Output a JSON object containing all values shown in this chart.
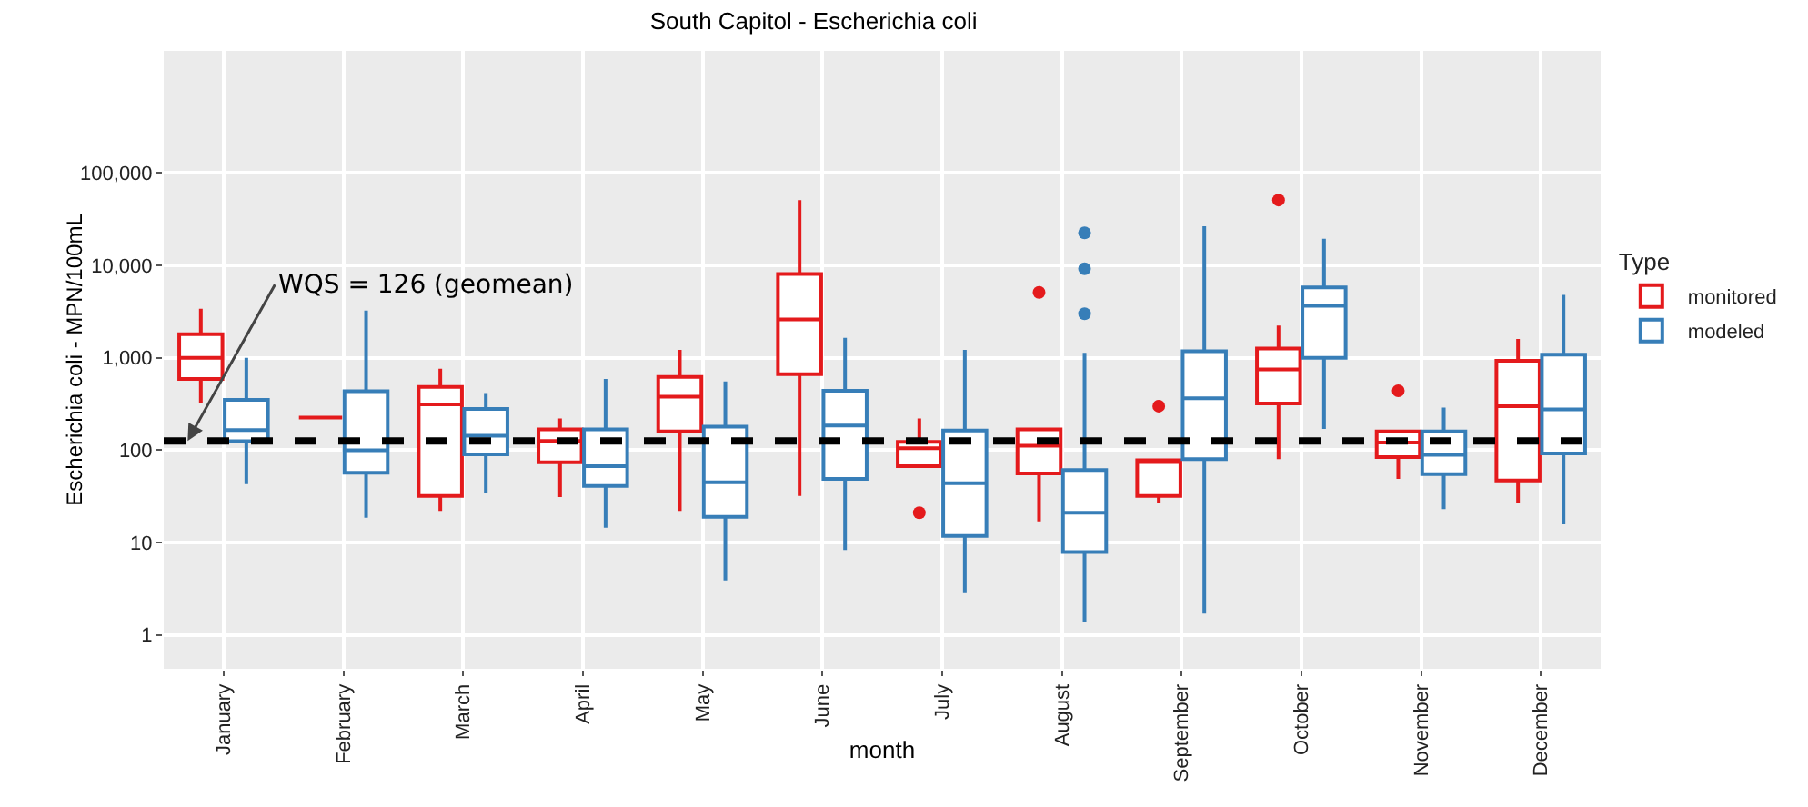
{
  "chart_data": {
    "type": "box",
    "title": "South Capitol - Escherichia coli",
    "xlabel": "month",
    "ylabel": "Escherichia coli - MPN/100mL",
    "legend_title": "Type",
    "legend": "right",
    "grid": true,
    "log": "y",
    "categories": [
      "January",
      "February",
      "March",
      "April",
      "May",
      "June",
      "July",
      "August",
      "September",
      "October",
      "November",
      "December"
    ],
    "ylim": [
      0.43,
      2100000
    ],
    "yticks": [
      1,
      10,
      100,
      {
        "value": 1000,
        "label": "1,000"
      },
      {
        "value": 10000,
        "label": "10,000"
      },
      {
        "value": 100000,
        "label": "100,000"
      }
    ],
    "ref_lines": [
      {
        "axis": "y",
        "value": 126,
        "label": "WQS = 126 (geomean)",
        "color": "#000000",
        "line_style": "dashed"
      }
    ],
    "series": [
      {
        "name": "monitored",
        "color": "#e41a1c",
        "boxes": [
          {
            "low": 320,
            "q1": 590,
            "median": 1000,
            "q3": 1800,
            "high": 3400
          },
          {
            "low": 225,
            "q1": 225,
            "median": 225,
            "q3": 225,
            "high": 225
          },
          {
            "low": 22,
            "q1": 32,
            "median": 313,
            "q3": 485,
            "high": 760
          },
          {
            "low": 31,
            "q1": 74,
            "median": 126,
            "q3": 168,
            "high": 220
          },
          {
            "low": 22,
            "q1": 160,
            "median": 380,
            "q3": 620,
            "high": 1220
          },
          {
            "low": 32,
            "q1": 665,
            "median": 2600,
            "q3": 8100,
            "high": 51000
          },
          {
            "low": 67,
            "q1": 67,
            "median": 105,
            "q3": 123,
            "high": 220,
            "outliers": [
              21
            ]
          },
          {
            "low": 17,
            "q1": 56,
            "median": 112,
            "q3": 168,
            "high": 168,
            "outliers": [
              5100
            ]
          },
          {
            "low": 27,
            "q1": 32,
            "median": 75,
            "q3": 78,
            "high": 78,
            "outliers": [
              300
            ]
          },
          {
            "low": 80,
            "q1": 320,
            "median": 750,
            "q3": 1260,
            "high": 2240,
            "outliers": [
              51000
            ]
          },
          {
            "low": 49,
            "q1": 84,
            "median": 121,
            "q3": 160,
            "high": 160,
            "outliers": [
              440
            ]
          },
          {
            "low": 27,
            "q1": 47,
            "median": 300,
            "q3": 930,
            "high": 1600
          }
        ]
      },
      {
        "name": "modeled",
        "color": "#377eb8",
        "boxes": [
          {
            "low": 43,
            "q1": 125,
            "median": 165,
            "q3": 350,
            "high": 1000
          },
          {
            "low": 18.6,
            "q1": 57,
            "median": 100,
            "q3": 435,
            "high": 3250
          },
          {
            "low": 34,
            "q1": 90,
            "median": 143,
            "q3": 280,
            "high": 415
          },
          {
            "low": 14.5,
            "q1": 41,
            "median": 67,
            "q3": 168,
            "high": 590
          },
          {
            "low": 3.9,
            "q1": 19,
            "median": 45,
            "q3": 180,
            "high": 555
          },
          {
            "low": 8.3,
            "q1": 49,
            "median": 185,
            "q3": 440,
            "high": 1650
          },
          {
            "low": 2.9,
            "q1": 11.8,
            "median": 44,
            "q3": 163,
            "high": 1220
          },
          {
            "low": 1.4,
            "q1": 7.9,
            "median": 21,
            "q3": 61,
            "high": 1130,
            "outliers": [
              22500,
              9200,
              3000
            ]
          },
          {
            "low": 1.7,
            "q1": 80,
            "median": 365,
            "q3": 1180,
            "high": 26500
          },
          {
            "low": 170,
            "q1": 1000,
            "median": 3650,
            "q3": 5800,
            "high": 19400
          },
          {
            "low": 23,
            "q1": 55,
            "median": 89,
            "q3": 160,
            "high": 290
          },
          {
            "low": 15.8,
            "q1": 92,
            "median": 277,
            "q3": 1080,
            "high": 4800
          }
        ]
      }
    ]
  }
}
